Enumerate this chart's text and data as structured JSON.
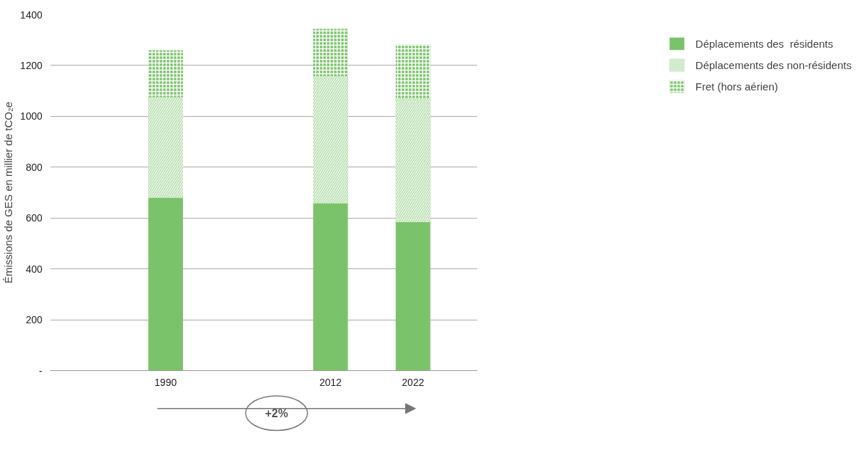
{
  "chart_data": {
    "type": "bar",
    "stacked": true,
    "ylabel": "Émissions de GES en millier de tCO₂e",
    "categories": [
      "1990",
      null,
      "2012",
      "2022"
    ],
    "series": [
      {
        "name": "Déplacements des  résidents",
        "color": "#7ac36a",
        "values": [
          680,
          null,
          658,
          584
        ]
      },
      {
        "name": "Déplacements des non-résidents",
        "color": "#7ac36a",
        "values": [
          395,
          null,
          500,
          487
        ]
      },
      {
        "name": "Fret (hors aérien)",
        "color": "#7ac36a",
        "values": [
          185,
          null,
          186,
          211
        ]
      }
    ],
    "ylim": [
      0,
      1400
    ],
    "yticks": [
      {
        "value": 0,
        "label": "-"
      },
      200,
      400,
      600,
      800,
      1000,
      1200,
      1400
    ],
    "grid": "y",
    "legend": "top right",
    "annotations": [
      "+2%"
    ]
  }
}
